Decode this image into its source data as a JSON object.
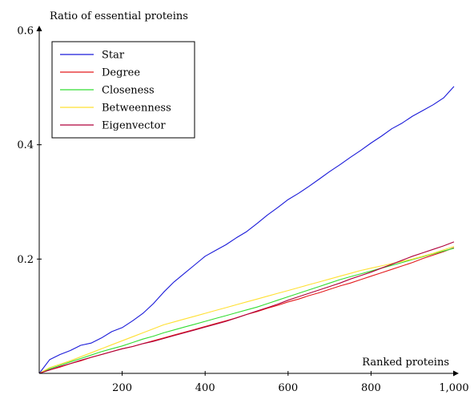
{
  "chart_data": {
    "type": "line",
    "xlabel": "Ranked proteins",
    "ylabel": "Ratio of essential proteins",
    "xlim": [
      0,
      1000
    ],
    "ylim": [
      0,
      0.6
    ],
    "x_ticks": [
      200,
      400,
      600,
      800,
      1000
    ],
    "x_tick_labels": [
      "200",
      "400",
      "600",
      "800",
      "1,000"
    ],
    "y_ticks": [
      0.2,
      0.4,
      0.6
    ],
    "y_tick_labels": [
      "0.2",
      "0.4",
      "0.6"
    ],
    "grid": false,
    "legend_position": "top-left",
    "x": [
      0,
      25,
      50,
      75,
      100,
      125,
      150,
      175,
      200,
      225,
      250,
      275,
      300,
      325,
      350,
      375,
      400,
      425,
      450,
      475,
      500,
      525,
      550,
      575,
      600,
      625,
      650,
      675,
      700,
      725,
      750,
      775,
      800,
      825,
      850,
      875,
      900,
      925,
      950,
      975,
      1000
    ],
    "series": [
      {
        "name": "Star",
        "color": "#1a1ad9",
        "values": [
          0.0,
          0.024,
          0.033,
          0.04,
          0.049,
          0.053,
          0.062,
          0.073,
          0.08,
          0.092,
          0.105,
          0.122,
          0.142,
          0.16,
          0.175,
          0.19,
          0.205,
          0.215,
          0.225,
          0.237,
          0.248,
          0.262,
          0.277,
          0.29,
          0.304,
          0.315,
          0.327,
          0.34,
          0.353,
          0.365,
          0.378,
          0.39,
          0.403,
          0.415,
          0.428,
          0.438,
          0.45,
          0.46,
          0.47,
          0.482,
          0.502
        ]
      },
      {
        "name": "Degree",
        "color": "#e41a1c",
        "values": [
          0.0,
          0.006,
          0.011,
          0.017,
          0.022,
          0.028,
          0.033,
          0.038,
          0.043,
          0.047,
          0.052,
          0.057,
          0.062,
          0.067,
          0.072,
          0.077,
          0.082,
          0.087,
          0.092,
          0.097,
          0.103,
          0.108,
          0.114,
          0.119,
          0.125,
          0.13,
          0.136,
          0.141,
          0.147,
          0.153,
          0.158,
          0.164,
          0.17,
          0.176,
          0.182,
          0.188,
          0.194,
          0.201,
          0.207,
          0.213,
          0.22
        ]
      },
      {
        "name": "Closeness",
        "color": "#33dd33",
        "values": [
          0.0,
          0.008,
          0.014,
          0.02,
          0.026,
          0.032,
          0.038,
          0.043,
          0.048,
          0.054,
          0.06,
          0.065,
          0.071,
          0.076,
          0.081,
          0.086,
          0.091,
          0.096,
          0.101,
          0.106,
          0.111,
          0.116,
          0.122,
          0.128,
          0.134,
          0.14,
          0.146,
          0.152,
          0.158,
          0.164,
          0.169,
          0.174,
          0.179,
          0.184,
          0.189,
          0.194,
          0.199,
          0.204,
          0.209,
          0.214,
          0.219
        ]
      },
      {
        "name": "Betweenness",
        "color": "#ffe033",
        "values": [
          0.0,
          0.01,
          0.016,
          0.022,
          0.029,
          0.036,
          0.043,
          0.05,
          0.057,
          0.064,
          0.071,
          0.078,
          0.085,
          0.09,
          0.095,
          0.1,
          0.105,
          0.11,
          0.115,
          0.12,
          0.125,
          0.13,
          0.135,
          0.14,
          0.145,
          0.15,
          0.155,
          0.16,
          0.165,
          0.17,
          0.175,
          0.18,
          0.184,
          0.188,
          0.192,
          0.196,
          0.2,
          0.205,
          0.21,
          0.216,
          0.222
        ]
      },
      {
        "name": "Eigenvector",
        "color": "#b0003a",
        "values": [
          0.0,
          0.006,
          0.012,
          0.017,
          0.023,
          0.028,
          0.033,
          0.038,
          0.043,
          0.047,
          0.052,
          0.056,
          0.061,
          0.066,
          0.071,
          0.076,
          0.081,
          0.086,
          0.091,
          0.097,
          0.103,
          0.109,
          0.115,
          0.121,
          0.128,
          0.134,
          0.14,
          0.146,
          0.152,
          0.158,
          0.165,
          0.171,
          0.177,
          0.184,
          0.191,
          0.198,
          0.205,
          0.211,
          0.217,
          0.223,
          0.23
        ]
      }
    ]
  }
}
